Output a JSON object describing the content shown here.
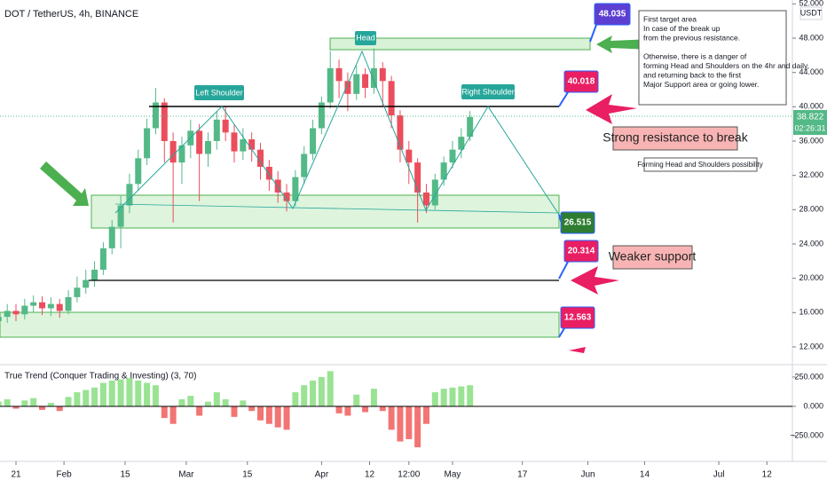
{
  "chart_data": [
    {
      "type": "candlestick",
      "title": "DOT / TetherUS, 4h, BINANCE",
      "y_label": "USDT",
      "x": [
        -4,
        -2,
        0,
        2,
        4,
        6,
        8,
        10,
        12,
        14,
        16,
        18,
        20,
        22,
        24,
        26,
        28,
        30,
        32,
        34,
        36,
        38,
        40,
        42,
        44,
        46,
        48,
        50,
        52,
        54,
        56,
        58,
        60,
        62,
        64,
        66,
        68,
        70,
        72,
        74,
        76,
        78,
        80,
        82,
        84,
        86,
        88,
        90,
        92,
        94,
        96,
        98,
        100,
        102,
        104
      ],
      "open": [
        15.0,
        15.5,
        16.2,
        15.8,
        16.8,
        17.2,
        16.5,
        17.0,
        16.2,
        17.8,
        18.9,
        19.8,
        21.0,
        23.5,
        26.0,
        28.5,
        31.0,
        34.0,
        37.5,
        40.5,
        36.0,
        33.5,
        35.5,
        37.2,
        34.5,
        36.0,
        38.5,
        37.0,
        34.8,
        36.2,
        35.0,
        33.0,
        31.5,
        30.0,
        29.0,
        31.8,
        34.5,
        37.5,
        40.5,
        44.5,
        43.0,
        41.5,
        43.8,
        42.2,
        44.5,
        43.0,
        39.0,
        35.0,
        33.5,
        30.0,
        28.5,
        31.5,
        33.5,
        35.0,
        36.5
      ],
      "high": [
        16.3,
        17.0,
        17.0,
        17.6,
        18.0,
        17.9,
        17.8,
        17.6,
        18.6,
        20.2,
        21.0,
        22.0,
        24.2,
        26.8,
        29.6,
        32.2,
        35.0,
        38.6,
        42.2,
        41.0,
        37.0,
        36.5,
        38.5,
        38.0,
        37.0,
        39.5,
        40.0,
        38.0,
        37.5,
        37.0,
        35.8,
        33.8,
        32.5,
        31.0,
        32.6,
        35.4,
        38.5,
        41.2,
        46.5,
        45.5,
        44.0,
        44.8,
        44.5,
        46.8,
        45.2,
        43.6,
        39.6,
        36.0,
        34.0,
        31.0,
        32.2,
        34.2,
        36.0,
        37.5,
        39.5
      ],
      "low": [
        14.2,
        14.8,
        15.0,
        15.2,
        16.0,
        15.7,
        15.6,
        15.4,
        15.8,
        17.2,
        18.2,
        19.0,
        20.4,
        22.8,
        23.5,
        27.6,
        30.2,
        33.2,
        36.8,
        33.5,
        26.5,
        31.0,
        34.0,
        29.0,
        33.0,
        35.0,
        36.0,
        33.5,
        33.8,
        33.6,
        31.5,
        30.2,
        28.8,
        27.8,
        28.4,
        31.0,
        33.8,
        36.8,
        39.8,
        41.0,
        39.5,
        40.8,
        41.0,
        41.5,
        40.0,
        37.5,
        33.5,
        31.0,
        26.5,
        27.6,
        28.0,
        30.8,
        32.8,
        34.0,
        36.0
      ],
      "close": [
        15.5,
        16.2,
        15.8,
        16.8,
        17.2,
        16.5,
        17.0,
        16.2,
        17.8,
        18.9,
        19.8,
        21.0,
        23.5,
        26.0,
        28.5,
        31.0,
        34.0,
        37.5,
        40.5,
        36.0,
        33.5,
        35.5,
        37.2,
        34.5,
        36.0,
        38.5,
        37.0,
        34.8,
        36.2,
        35.0,
        33.0,
        31.5,
        30.0,
        29.0,
        31.8,
        34.5,
        37.5,
        40.5,
        44.5,
        43.0,
        41.5,
        43.8,
        42.2,
        44.5,
        43.0,
        39.0,
        35.0,
        33.5,
        30.0,
        28.5,
        31.5,
        33.5,
        35.0,
        36.5,
        38.8
      ],
      "up_color": "#53b987",
      "down_color": "#eb4d5c",
      "xlim": [
        -3.66,
        177.85
      ],
      "xticks": [
        {
          "value": 0,
          "label": "21"
        },
        {
          "value": 11,
          "label": "Feb"
        },
        {
          "value": 25,
          "label": "15"
        },
        {
          "value": 39,
          "label": "Mar"
        },
        {
          "value": 53,
          "label": "15"
        },
        {
          "value": 70,
          "label": "Apr"
        },
        {
          "value": 81,
          "label": "12"
        },
        {
          "value": 90,
          "label": "12:00"
        },
        {
          "value": 100,
          "label": "May"
        },
        {
          "value": 116,
          "label": "17"
        },
        {
          "value": 131,
          "label": "Jun"
        },
        {
          "value": 144,
          "label": "14"
        },
        {
          "value": 161,
          "label": "Jul"
        },
        {
          "value": 172,
          "label": "12"
        }
      ],
      "ylim": [
        10.03,
        52.45
      ],
      "yticks": [
        {
          "value": 12,
          "label": "12.000"
        },
        {
          "value": 16,
          "label": "16.000"
        },
        {
          "value": 20,
          "label": "20.000"
        },
        {
          "value": 24,
          "label": "24.000"
        },
        {
          "value": 28,
          "label": "28.000"
        },
        {
          "value": 32,
          "label": "32.000"
        },
        {
          "value": 36,
          "label": "36.000"
        },
        {
          "value": 40,
          "label": "40.000"
        },
        {
          "value": 44,
          "label": "44.000"
        },
        {
          "value": 48,
          "label": "48.000"
        },
        {
          "value": 52,
          "label": "52.000"
        }
      ],
      "last_price": 38.822,
      "countdown": "02:26:31",
      "annotations": {
        "pattern_labels": [
          "Left Shoulder",
          "Head",
          "Right Shoulder"
        ],
        "price_labels": [
          48.035,
          40.018,
          26.515,
          20.314,
          12.563
        ],
        "callouts": [
          "Strong resistance to break",
          "Weaker support",
          "Forming Head and Shoulders possibility"
        ],
        "note": [
          [
            "First target area",
            "In case of the break up",
            "from the previous resistance."
          ],
          [
            "Otherwise, there is a danger of",
            "forming Head and Shoulders on the 4hr and daily,",
            "and returning back to the first",
            "Major Support area or going lower."
          ]
        ]
      }
    },
    {
      "type": "bar",
      "title": "True Trend (Conquer Trading & Investing) (3, 70)",
      "x": [
        -4,
        -2,
        0,
        2,
        4,
        6,
        8,
        10,
        12,
        14,
        16,
        18,
        20,
        22,
        24,
        26,
        28,
        30,
        32,
        34,
        36,
        38,
        40,
        42,
        44,
        46,
        48,
        50,
        52,
        54,
        56,
        58,
        60,
        62,
        64,
        66,
        68,
        70,
        72,
        74,
        76,
        78,
        80,
        82,
        84,
        86,
        88,
        90,
        92,
        94,
        96,
        98,
        100,
        102,
        104
      ],
      "values": [
        40,
        60,
        -20,
        50,
        70,
        -30,
        30,
        -40,
        80,
        120,
        140,
        160,
        200,
        220,
        230,
        240,
        220,
        200,
        180,
        -100,
        -150,
        60,
        90,
        -80,
        40,
        120,
        60,
        -90,
        50,
        -40,
        -120,
        -150,
        -180,
        -200,
        120,
        180,
        220,
        250,
        300,
        -60,
        -80,
        100,
        -50,
        150,
        -40,
        -200,
        -300,
        -280,
        -350,
        -150,
        120,
        150,
        160,
        170,
        180
      ],
      "pos_color": "#7fdc78",
      "neg_color": "#ef5350",
      "ylim": [
        -470,
        348
      ],
      "yticks": [
        {
          "value": 250,
          "label": "250.000"
        },
        {
          "value": 0,
          "label": "0.000"
        },
        {
          "value": -250,
          "label": "−250.000"
        }
      ]
    }
  ]
}
